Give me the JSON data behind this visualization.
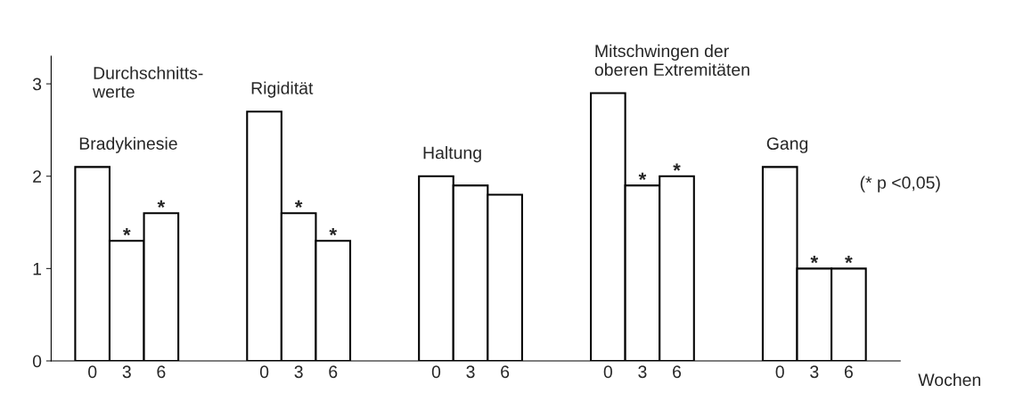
{
  "chart_data": {
    "type": "bar",
    "categories": [
      "0",
      "3",
      "6",
      null,
      null,
      "0",
      "3",
      "6",
      null,
      null,
      "0",
      "3",
      "6",
      null,
      null,
      "0",
      "3",
      "6",
      null,
      null,
      "0",
      "3",
      "6"
    ],
    "values": [
      2.1,
      1.3,
      1.6,
      null,
      null,
      2.7,
      1.6,
      1.3,
      null,
      null,
      2.0,
      1.9,
      1.8,
      null,
      null,
      2.9,
      1.9,
      2.0,
      null,
      null,
      2.1,
      1.0,
      1.0
    ],
    "value_labels": [
      null,
      "*",
      "*",
      null,
      null,
      null,
      "*",
      "*",
      null,
      null,
      null,
      null,
      null,
      null,
      null,
      null,
      "*",
      "*",
      null,
      null,
      null,
      "*",
      "*"
    ],
    "color": "#ffffff",
    "ylabel": "Durchschnitts-\nwerte",
    "xlabel": "Wochen",
    "ylim": [
      0,
      3.3
    ],
    "yticks": [
      0,
      1,
      2,
      3
    ],
    "grid": false,
    "annotations": [
      "Bradykinesie",
      "Rigidität",
      "Haltung",
      "Mitschwingen der\noberen Extremitäten",
      "Gang",
      "(* p <0,05)"
    ]
  }
}
